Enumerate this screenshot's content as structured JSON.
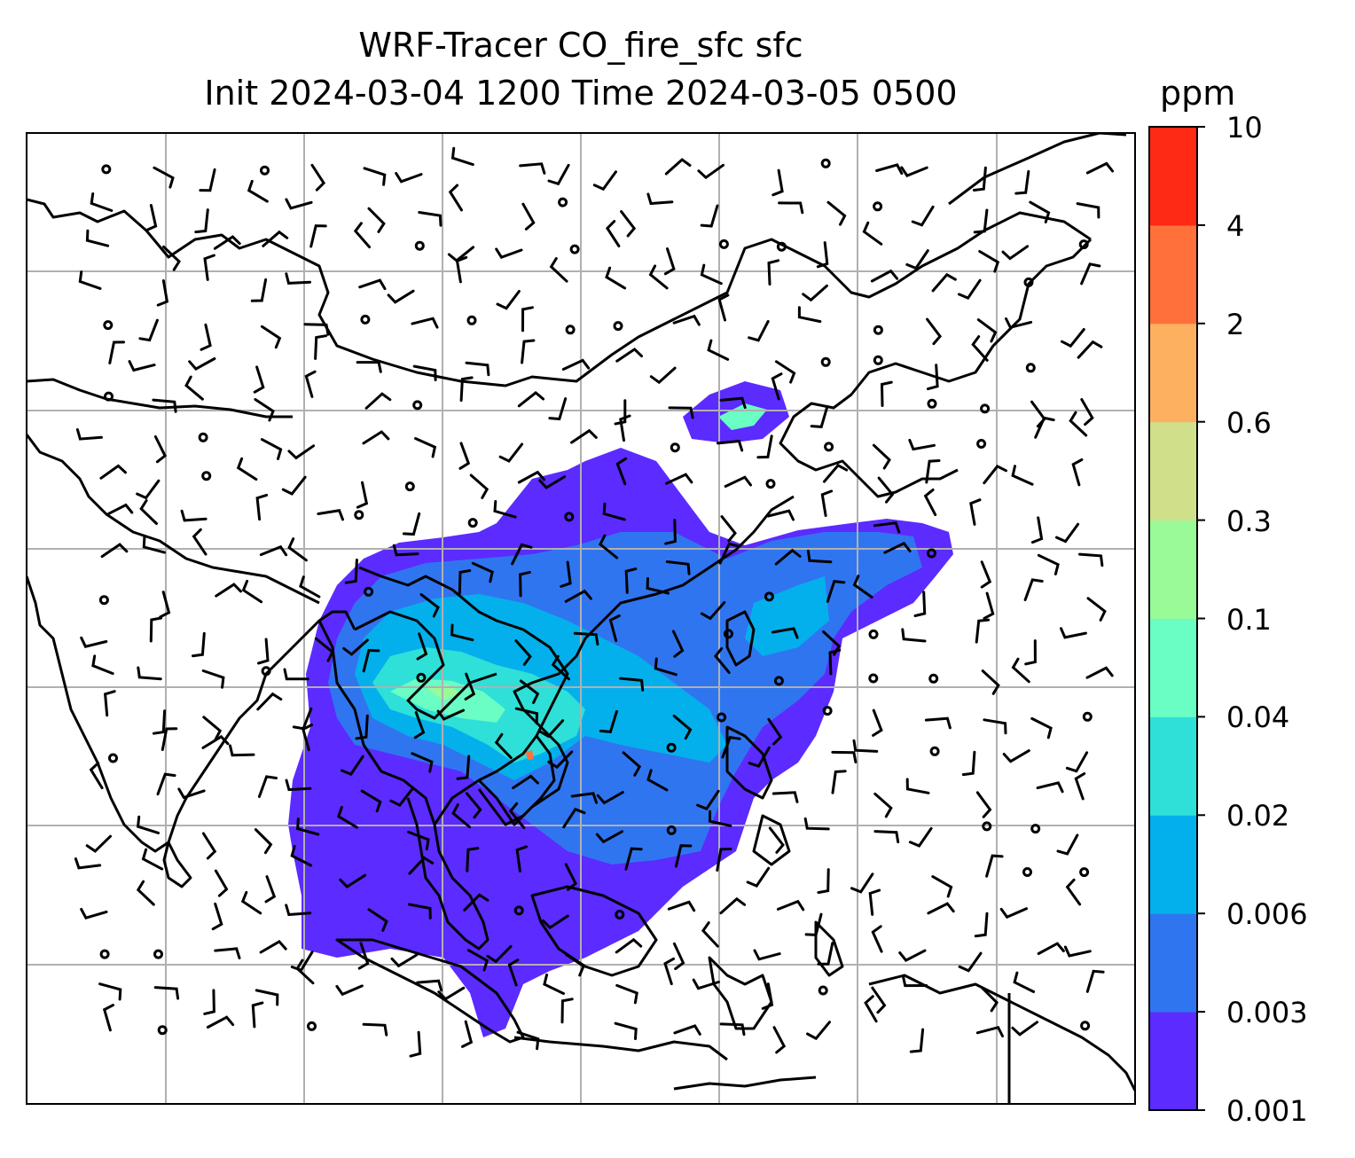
{
  "title": {
    "line1": "WRF-Tracer CO_fire_sfc sfc",
    "line2": "Init 2024-03-04 1200 Time 2024-03-05 0500"
  },
  "colorbar": {
    "units": "ppm",
    "levels": [
      "0.001",
      "0.003",
      "0.006",
      "0.02",
      "0.04",
      "0.1",
      "0.3",
      "0.6",
      "2",
      "4",
      "10"
    ],
    "colors": [
      "#5b2bff",
      "#3075f0",
      "#04b0ec",
      "#2ee0d8",
      "#6afdc4",
      "#98fb98",
      "#d0e08a",
      "#feb061",
      "#ff703b",
      "#ff2a16"
    ]
  },
  "map": {
    "coastline_color": "#000000",
    "grid_color": "#b0b0b0",
    "barb_color": "#000000"
  }
}
